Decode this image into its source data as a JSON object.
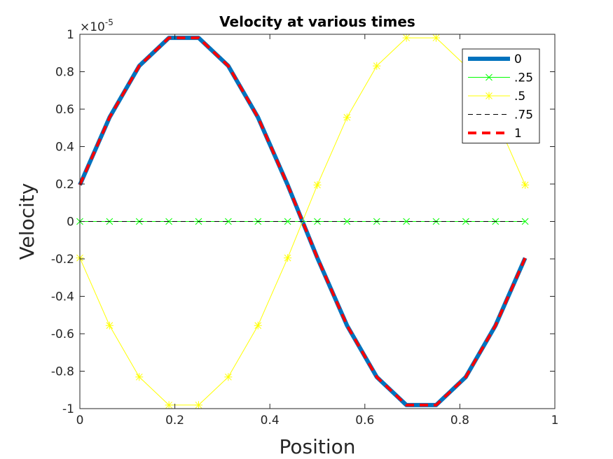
{
  "chart_data": {
    "type": "line",
    "title": "Velocity at various times",
    "xlabel": "Position",
    "ylabel": "Velocity",
    "xlim": [
      0,
      1
    ],
    "ylim": [
      -1,
      1
    ],
    "y_exponent_base": "×10",
    "y_exponent_power": "-5",
    "xticks": [
      "0",
      "0.2",
      "0.4",
      "0.6",
      "0.8",
      "1"
    ],
    "yticks": [
      "-1",
      "-0.8",
      "-0.6",
      "-0.4",
      "-0.2",
      "0",
      "0.2",
      "0.4",
      "0.6",
      "0.8",
      "1"
    ],
    "grid": false,
    "legend_position": "top-right",
    "x": [
      0,
      0.0625,
      0.125,
      0.1875,
      0.25,
      0.3125,
      0.375,
      0.4375,
      0.5,
      0.5625,
      0.625,
      0.6875,
      0.75,
      0.8125,
      0.875,
      0.9375
    ],
    "series": [
      {
        "name": "0",
        "color": "#0072bd",
        "style": "solid-thick",
        "marker": "none",
        "values": [
          0.195,
          0.556,
          0.831,
          0.981,
          0.981,
          0.831,
          0.556,
          0.195,
          -0.195,
          -0.556,
          -0.831,
          -0.981,
          -0.981,
          -0.831,
          -0.556,
          -0.195
        ]
      },
      {
        "name": ".25",
        "color": "#00ff00",
        "style": "solid-thin",
        "marker": "x",
        "values": [
          0,
          0,
          0,
          0,
          0,
          0,
          0,
          0,
          0,
          0,
          0,
          0,
          0,
          0,
          0,
          0
        ]
      },
      {
        "name": ".5",
        "color": "#ffff00",
        "style": "solid-thin",
        "marker": "asterisk",
        "values": [
          -0.195,
          -0.556,
          -0.831,
          -0.981,
          -0.981,
          -0.831,
          -0.556,
          -0.195,
          0.195,
          0.556,
          0.831,
          0.981,
          0.981,
          0.831,
          0.556,
          0.195
        ]
      },
      {
        "name": ".75",
        "color": "#000000",
        "style": "dashed-thin",
        "marker": "none",
        "values": [
          0,
          0,
          0,
          0,
          0,
          0,
          0,
          0,
          0,
          0,
          0,
          0,
          0,
          0,
          0,
          0
        ]
      },
      {
        "name": "1",
        "color": "#ff0000",
        "style": "dashed-thick",
        "marker": "none",
        "values": [
          0.195,
          0.556,
          0.831,
          0.981,
          0.981,
          0.831,
          0.556,
          0.195,
          -0.195,
          -0.556,
          -0.831,
          -0.981,
          -0.981,
          -0.831,
          -0.556,
          -0.195
        ]
      }
    ]
  }
}
